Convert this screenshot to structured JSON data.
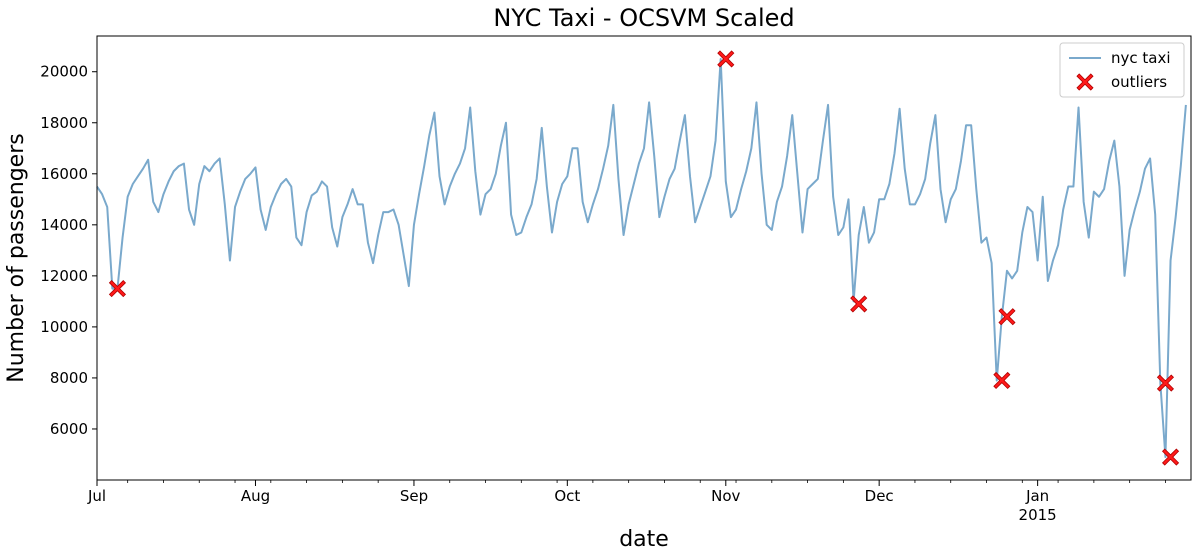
{
  "chart_data": {
    "type": "line",
    "title": "NYC Taxi - OCSVM Scaled",
    "xlabel": "date",
    "ylabel": "Number of passengers",
    "x_start": "2014-07-01",
    "xlim": [
      "2014-07-01",
      "2015-01-31"
    ],
    "ylim": [
      4000,
      21400
    ],
    "x_ticks": [
      {
        "date": "2014-07-01",
        "label": "Jul",
        "sublabel": ""
      },
      {
        "date": "2014-08-01",
        "label": "Aug",
        "sublabel": ""
      },
      {
        "date": "2014-09-01",
        "label": "Sep",
        "sublabel": ""
      },
      {
        "date": "2014-10-01",
        "label": "Oct",
        "sublabel": ""
      },
      {
        "date": "2014-11-01",
        "label": "Nov",
        "sublabel": ""
      },
      {
        "date": "2014-12-01",
        "label": "Dec",
        "sublabel": ""
      },
      {
        "date": "2015-01-01",
        "label": "Jan",
        "sublabel": "2015"
      }
    ],
    "y_ticks": [
      6000,
      8000,
      10000,
      12000,
      14000,
      16000,
      18000,
      20000
    ],
    "grid": false,
    "legend": {
      "placement": "top-right",
      "entries": [
        {
          "label": "nyc taxi",
          "type": "line",
          "color": "#7aa9cc"
        },
        {
          "label": "outliers",
          "type": "marker-x",
          "color": "#ff1a1a"
        }
      ]
    },
    "series": [
      {
        "name": "nyc taxi",
        "color": "#7aa9cc",
        "values": [
          15500,
          15200,
          14700,
          11500,
          11500,
          13500,
          15100,
          15600,
          15900,
          16200,
          16550,
          14900,
          14500,
          15200,
          15700,
          16100,
          16300,
          16400,
          14600,
          14000,
          15600,
          16300,
          16100,
          16400,
          16600,
          14800,
          12600,
          14700,
          15300,
          15800,
          16000,
          16250,
          14600,
          13800,
          14700,
          15200,
          15600,
          15800,
          15500,
          13500,
          13200,
          14500,
          15150,
          15300,
          15700,
          15500,
          13900,
          13150,
          14300,
          14800,
          15400,
          14800,
          14800,
          13300,
          12500,
          13600,
          14500,
          14500,
          14600,
          14000,
          12800,
          11600,
          14000,
          15200,
          16300,
          17500,
          18400,
          15900,
          14800,
          15500,
          16000,
          16400,
          17000,
          18600,
          16100,
          14400,
          15200,
          15400,
          16000,
          17100,
          18000,
          14400,
          13600,
          13700,
          14300,
          14800,
          15800,
          17800,
          15500,
          13700,
          14900,
          15600,
          15900,
          17000,
          17000,
          14900,
          14100,
          14800,
          15400,
          16200,
          17100,
          18700,
          15800,
          13600,
          14800,
          15600,
          16400,
          17000,
          18800,
          16700,
          14300,
          15100,
          15800,
          16200,
          17300,
          18300,
          15900,
          14100,
          14700,
          15300,
          15900,
          17300,
          20500,
          15700,
          14300,
          14600,
          15400,
          16100,
          17000,
          18800,
          16000,
          14000,
          13800,
          14900,
          15500,
          16700,
          18300,
          16000,
          13700,
          15400,
          15600,
          15800,
          17300,
          18700,
          15100,
          13600,
          13900,
          15000,
          11000,
          13600,
          14700,
          13300,
          13700,
          15000,
          15000,
          15600,
          16800,
          18550,
          16200,
          14800,
          14800,
          15200,
          15800,
          17200,
          18300,
          15400,
          14100,
          15000,
          15400,
          16500,
          17900,
          17900,
          15400,
          13300,
          13500,
          12500,
          7900,
          10400,
          12200,
          11900,
          12200,
          13700,
          14700,
          14500,
          12600,
          15100,
          11800,
          12600,
          13200,
          14600,
          15500,
          15500,
          18600,
          14900,
          13500,
          15300,
          15100,
          15400,
          16500,
          17300,
          15500,
          12000,
          13800,
          14600,
          15300,
          16200,
          16600,
          14400,
          7800,
          4900,
          12600,
          14300,
          16300,
          18700
        ]
      },
      {
        "name": "outliers",
        "color": "#ff1a1a",
        "points": [
          {
            "x": "2014-07-05",
            "y": 11500
          },
          {
            "x": "2014-11-01",
            "y": 20500
          },
          {
            "x": "2014-11-27",
            "y": 10900
          },
          {
            "x": "2014-12-25",
            "y": 7900
          },
          {
            "x": "2014-12-26",
            "y": 10400
          },
          {
            "x": "2015-01-26",
            "y": 7800
          },
          {
            "x": "2015-01-27",
            "y": 4900
          }
        ]
      }
    ]
  }
}
